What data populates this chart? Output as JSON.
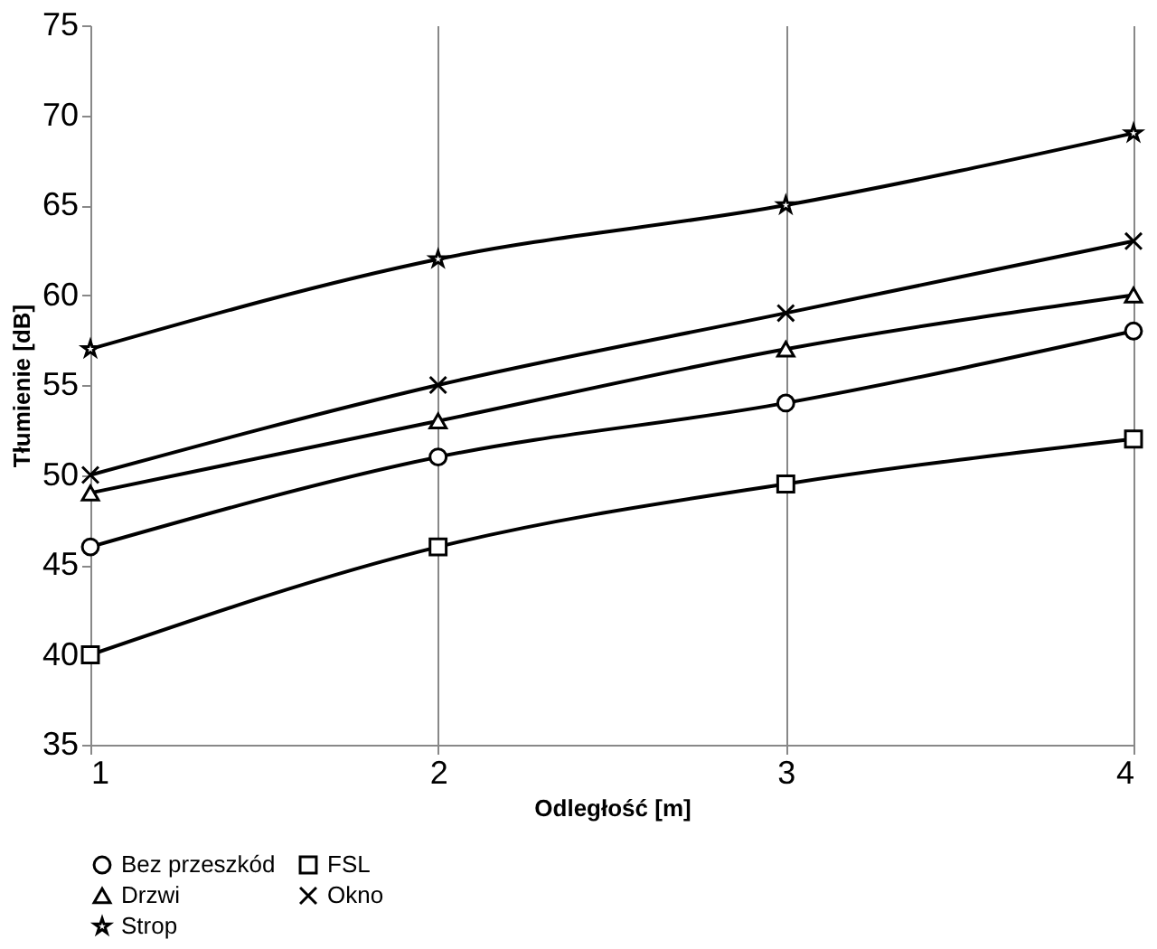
{
  "chart_data": {
    "type": "line",
    "xlabel": "Odległość [m]",
    "ylabel": "Tłumienie [dB]",
    "x": [
      1,
      2,
      3,
      4
    ],
    "xlim": [
      1,
      4
    ],
    "xticks": [
      1,
      2,
      3,
      4
    ],
    "ylim": [
      35,
      75
    ],
    "yticks": [
      35,
      40,
      45,
      50,
      55,
      60,
      65,
      70,
      75
    ],
    "grid": "x",
    "legend": "bottom",
    "line_style": "solid",
    "series": [
      {
        "name": "Bez przeszkód",
        "color": "#000000",
        "marker": "circle",
        "values": [
          46,
          51,
          54,
          58
        ]
      },
      {
        "name": "FSL",
        "color": "#000000",
        "marker": "square",
        "values": [
          40,
          46,
          49.5,
          52
        ]
      },
      {
        "name": "Drzwi",
        "color": "#000000",
        "marker": "triangle",
        "values": [
          49,
          53,
          57,
          60
        ]
      },
      {
        "name": "Okno",
        "color": "#000000",
        "marker": "cross",
        "values": [
          50,
          55,
          59,
          63
        ]
      },
      {
        "name": "Strop",
        "color": "#000000",
        "marker": "star",
        "values": [
          57,
          62,
          65,
          69
        ]
      }
    ]
  }
}
